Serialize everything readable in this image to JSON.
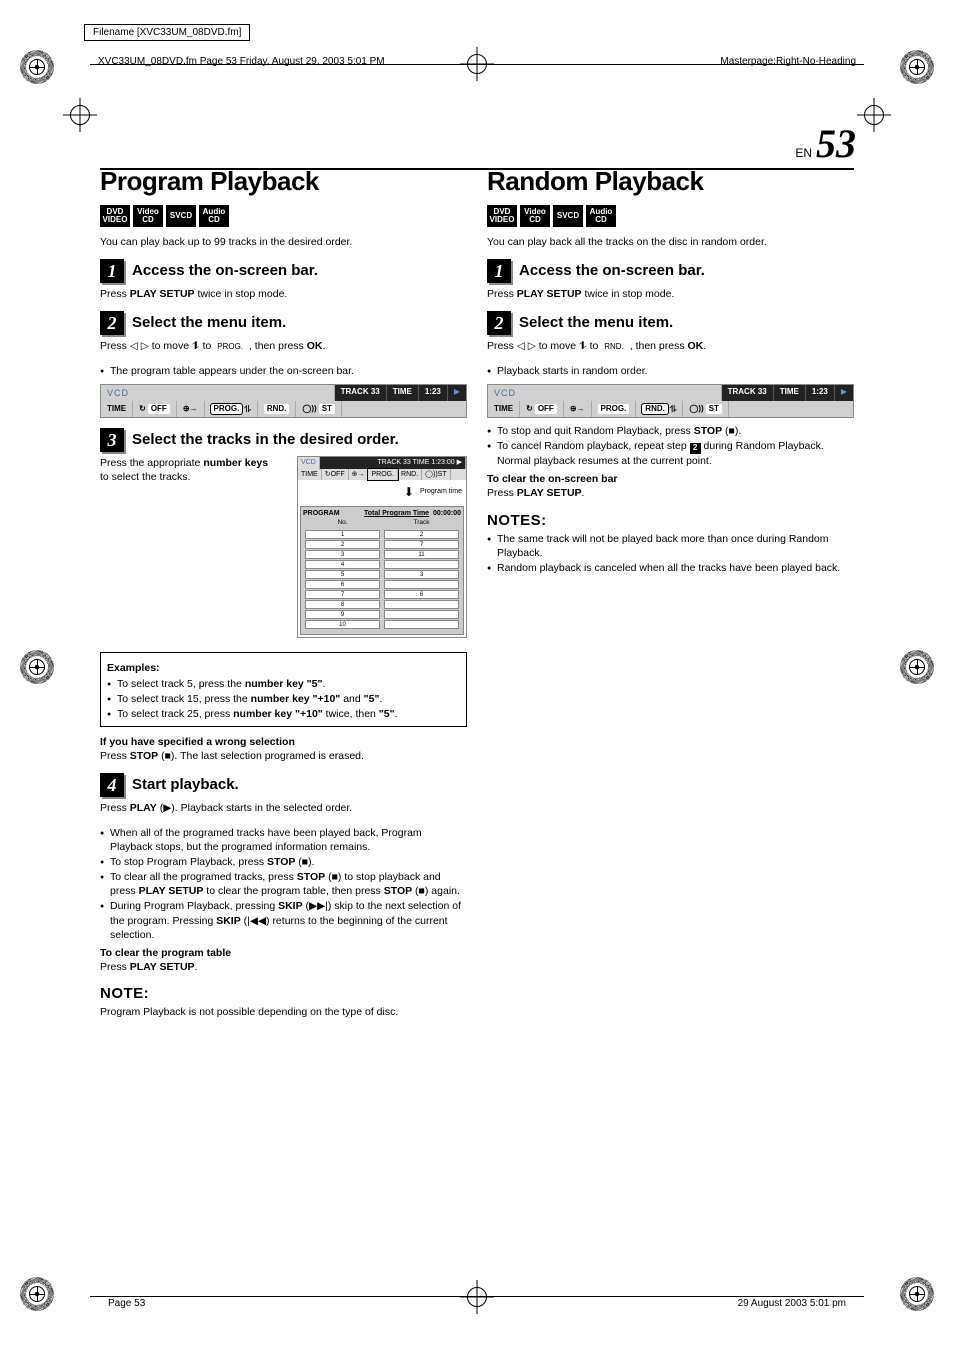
{
  "meta": {
    "filename_box": "Filename [XVC33UM_08DVD.fm]",
    "fm_line": "XVC33UM_08DVD.fm  Page 53  Friday, August 29, 2003  5:01 PM",
    "masterpage": "Masterpage:Right-No-Heading",
    "page_prefix": "EN",
    "page_num": "53",
    "pg_left": "Page 53",
    "pg_right": "29 August 2003 5:01 pm"
  },
  "badges": {
    "dvd": {
      "l1": "DVD",
      "l2": "VIDEO"
    },
    "vcd": {
      "l1": "Video",
      "l2": "CD"
    },
    "svcd": {
      "l1": "SVCD"
    },
    "acd": {
      "l1": "Audio",
      "l2": "CD"
    }
  },
  "osd": {
    "vcd": "VCD",
    "track": "TRACK 33",
    "time_lbl": "TIME",
    "time_val": "1:23",
    "play": "▶",
    "bot_time": "TIME",
    "bot_off": "OFF",
    "bot_prog": "PROG.",
    "bot_rnd": "RND.",
    "bot_st": "ST",
    "repeat_glyph": "↻",
    "clock_glyph": "⊕→",
    "stereo_glyph": "◯))"
  },
  "left": {
    "title": "Program Playback",
    "intro": "You can play back up to 99 tracks in the desired order.",
    "s1_title": "Access the on-screen bar.",
    "s1_body_a": "Press ",
    "s1_body_b": "PLAY SETUP",
    "s1_body_c": " twice in stop mode.",
    "s2_title": "Select the menu item.",
    "s2_body_a": "Press ◁ ▷ to move ",
    "s2_body_b": " to ",
    "s2_body_c": " , then press ",
    "s2_body_d": "OK",
    "s2_body_e": ".",
    "s2_cursor": "⥮",
    "s2_prog": "PROG.",
    "s2_li1": "The program table appears under the on-screen bar.",
    "s3_title": "Select the tracks in the desired order.",
    "s3_body_a": "Press the appropriate ",
    "s3_body_b": "number keys",
    "s3_body_c": " to select the tracks.",
    "progbox": {
      "vcd": "VCD",
      "black": "TRACK 33  TIME  1:23:00 ▶",
      "mini_time": "TIME",
      "mini_off": "↻OFF",
      "mini_clock": "⊕→",
      "mini_prog": "PROG.",
      "mini_rnd": "RND.",
      "mini_st": "◯))ST",
      "arrow": "⬇",
      "pt_label": "Program time",
      "PROGRAM": "PROGRAM",
      "tpt": "Total Program Time",
      "tpt_val": "00:00:00",
      "col_no": "No.",
      "col_track": "Track",
      "rows_no": [
        "1",
        "2",
        "3",
        "4",
        "5",
        "6",
        "7",
        "8",
        "9",
        "10"
      ],
      "rows_trk": [
        "2",
        "7",
        "11",
        "",
        "3",
        "",
        "6",
        "",
        "",
        ""
      ]
    },
    "ex_h": "Examples:",
    "ex1_a": "To select track 5, press the ",
    "ex1_b": "number key \"5\"",
    "ex1_c": ".",
    "ex2_a": "To select track 15, press the ",
    "ex2_b": "number key \"+10\"",
    "ex2_c": " and ",
    "ex2_d": "\"5\"",
    "ex2_e": ".",
    "ex3_a": "To select track 25, press ",
    "ex3_b": "number key \"+10\"",
    "ex3_c": " twice, then ",
    "ex3_d": "\"5\"",
    "ex3_e": ".",
    "wrong_h": "If you have specified a wrong selection",
    "wrong_a": "Press ",
    "wrong_b": "STOP",
    "wrong_c": " (■). The last selection programed is erased.",
    "s4_title": "Start playback.",
    "s4_a": "Press ",
    "s4_b": "PLAY",
    "s4_c": " (▶). Playback starts in the selected order.",
    "s4_li1": "When all of the programed tracks have been played back, Program Playback stops, but the programed information remains.",
    "s4_li2_a": "To stop Program Playback, press ",
    "s4_li2_b": "STOP",
    "s4_li2_c": " (■).",
    "s4_li3_a": "To clear all the programed tracks, press ",
    "s4_li3_b": "STOP",
    "s4_li3_c": " (■) to stop playback and press ",
    "s4_li3_d": "PLAY SETUP",
    "s4_li3_e": " to clear the program table, then press ",
    "s4_li3_f": "STOP",
    "s4_li3_g": " (■) again.",
    "s4_li4_a": "During Program Playback, pressing ",
    "s4_li4_b": "SKIP",
    "s4_li4_c": " (▶▶|) skip to the next selection of the program. Pressing ",
    "s4_li4_d": "SKIP",
    "s4_li4_e": " (|◀◀) returns to the beginning of the current selection.",
    "clear_h": "To clear the program table",
    "clear_a": "Press ",
    "clear_b": "PLAY SETUP",
    "clear_c": ".",
    "note_h": "NOTE:",
    "note_body": "Program Playback is not possible depending on the type of disc."
  },
  "right": {
    "title": "Random Playback",
    "intro": "You can play back all the tracks on the disc in random order.",
    "s1_title": "Access the on-screen bar.",
    "s1_a": "Press ",
    "s1_b": "PLAY SETUP",
    "s1_c": " twice in stop mode.",
    "s2_title": "Select the menu item.",
    "s2_a": "Press ◁ ▷ to move ",
    "s2_b": " to ",
    "s2_c": " , then press ",
    "s2_d": "OK",
    "s2_e": ".",
    "s2_cursor": "⥮",
    "s2_rnd": "RND.",
    "s2_li1": "Playback starts in random order.",
    "li_stop_a": "To stop and quit Random Playback, press ",
    "li_stop_b": "STOP",
    "li_stop_c": " (■).",
    "li_cancel_a": "To cancel Random playback, repeat step ",
    "li_cancel_step": "2",
    "li_cancel_b": " during Random Playback. Normal playback resumes at the current point.",
    "clear_h": "To clear the on-screen bar",
    "clear_a": "Press ",
    "clear_b": "PLAY SETUP",
    "clear_c": ".",
    "notes_h": "NOTES:",
    "n1": "The same track will not be played back more than once during Random Playback.",
    "n2": "Random playback is canceled when all the tracks have been played back."
  },
  "colors": {
    "black": "#000000",
    "gray_border": "#888888",
    "gray_fill": "#d0d0d0",
    "gray_progress": "#cccccc",
    "vcd_blue": "#4a6aa8",
    "play_blue": "#6a8acc",
    "shadow": "#888888"
  },
  "fonts": {
    "body_pt": 10.5,
    "title_pt": 26,
    "step_title_pt": 15,
    "badge_pt": 8,
    "osd_pt": 8,
    "pagenum_big_pt": 40
  }
}
